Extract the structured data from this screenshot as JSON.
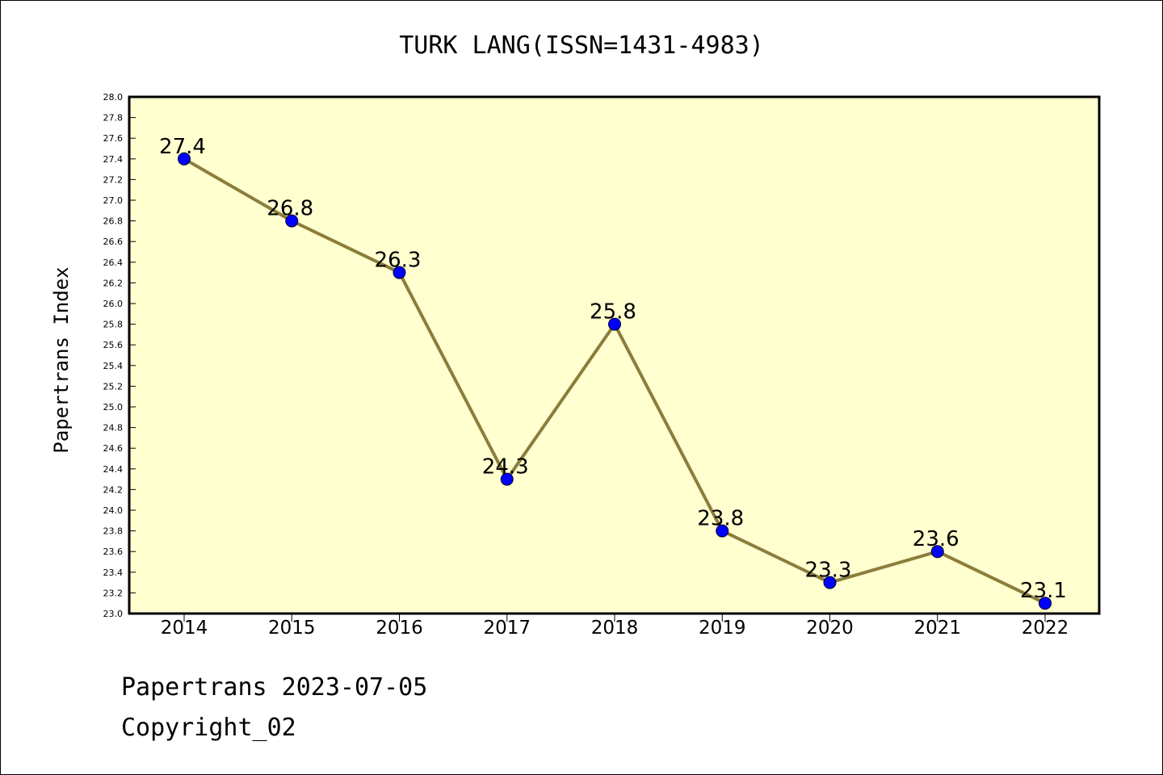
{
  "footer": {
    "line1": "Papertrans 2023-07-05",
    "line2": "Copyright_02"
  },
  "colors": {
    "plot_background": "#ffffd0",
    "line": "#8b7d3a",
    "marker": "#0000ff"
  },
  "chart_data": {
    "type": "line",
    "title": "TURK LANG(ISSN=1431-4983)",
    "xlabel": "",
    "ylabel": "Papertrans Index",
    "ylim": [
      23.0,
      28.0
    ],
    "ytick_step": 0.2,
    "grid": false,
    "categories": [
      "2014",
      "2015",
      "2016",
      "2017",
      "2018",
      "2019",
      "2020",
      "2021",
      "2022"
    ],
    "series": [
      {
        "values": [
          27.4,
          26.8,
          26.3,
          24.3,
          25.8,
          23.8,
          23.3,
          23.6,
          23.1
        ],
        "data_labels": [
          "27.4",
          "26.8",
          "26.3",
          "24.3",
          "25.8",
          "23.8",
          "23.3",
          "23.6",
          "23.1"
        ]
      }
    ]
  }
}
